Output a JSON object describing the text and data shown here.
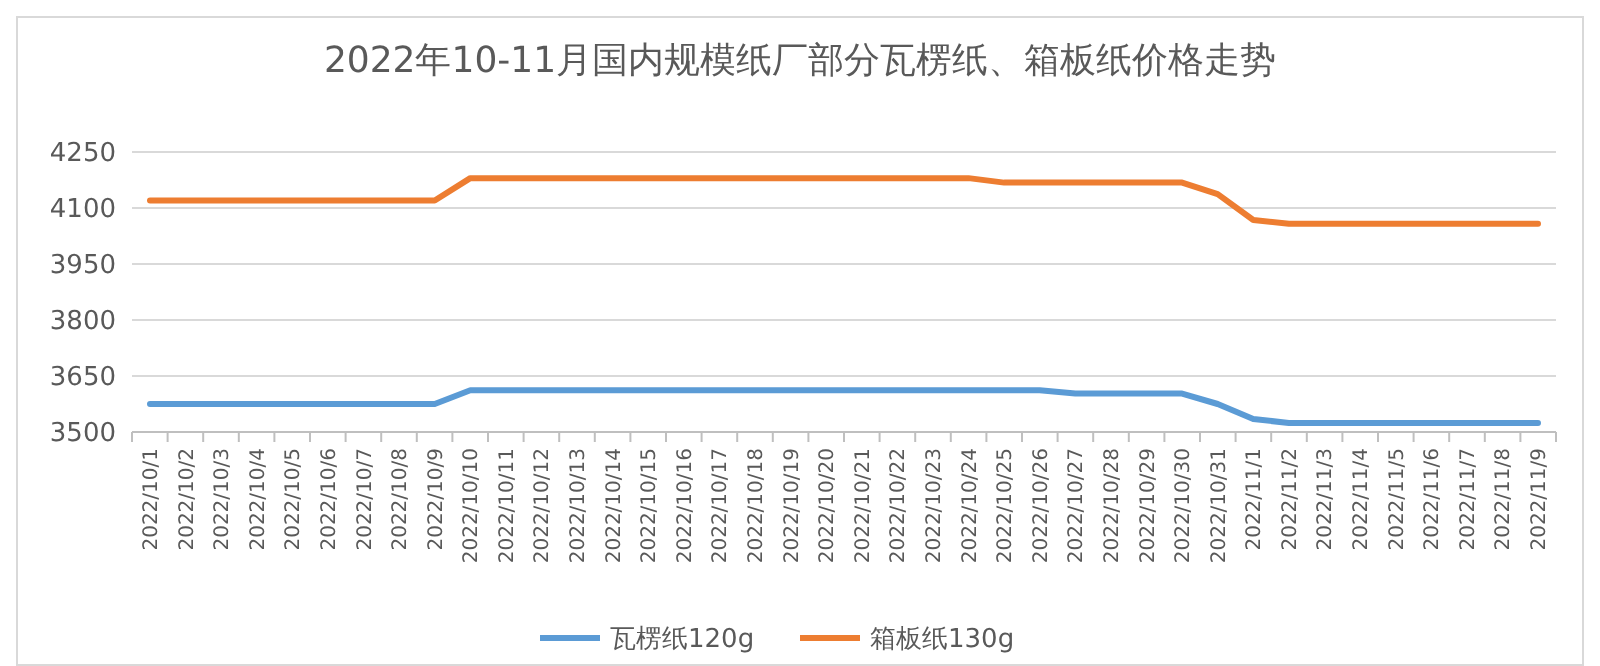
{
  "chart_data": {
    "type": "line",
    "title": "2022年10-11月国内规模纸厂部分瓦楞纸、箱板纸价格走势",
    "categories": [
      "2022/10/1",
      "2022/10/2",
      "2022/10/3",
      "2022/10/4",
      "2022/10/5",
      "2022/10/6",
      "2022/10/7",
      "2022/10/8",
      "2022/10/9",
      "2022/10/10",
      "2022/10/11",
      "2022/10/12",
      "2022/10/13",
      "2022/10/14",
      "2022/10/15",
      "2022/10/16",
      "2022/10/17",
      "2022/10/18",
      "2022/10/19",
      "2022/10/20",
      "2022/10/21",
      "2022/10/22",
      "2022/10/23",
      "2022/10/24",
      "2022/10/25",
      "2022/10/26",
      "2022/10/27",
      "2022/10/28",
      "2022/10/29",
      "2022/10/30",
      "2022/10/31",
      "2022/11/1",
      "2022/11/2",
      "2022/11/3",
      "2022/11/4",
      "2022/11/5",
      "2022/11/6",
      "2022/11/7",
      "2022/11/8",
      "2022/11/9"
    ],
    "series": [
      {
        "name": "瓦楞纸120g",
        "color": "#5b9bd5",
        "values": [
          3575,
          3575,
          3575,
          3575,
          3575,
          3575,
          3575,
          3575,
          3575,
          3612,
          3612,
          3612,
          3612,
          3612,
          3612,
          3612,
          3612,
          3612,
          3612,
          3612,
          3612,
          3612,
          3612,
          3612,
          3612,
          3612,
          3603,
          3603,
          3603,
          3603,
          3575,
          3535,
          3524,
          3524,
          3524,
          3524,
          3524,
          3524,
          3524,
          3524
        ]
      },
      {
        "name": "箱板纸130g",
        "color": "#ed7d31",
        "values": [
          4120,
          4120,
          4120,
          4120,
          4120,
          4120,
          4120,
          4120,
          4120,
          4180,
          4180,
          4180,
          4180,
          4180,
          4180,
          4180,
          4180,
          4180,
          4180,
          4180,
          4180,
          4180,
          4180,
          4180,
          4168,
          4168,
          4168,
          4168,
          4168,
          4168,
          4137,
          4068,
          4058,
          4058,
          4058,
          4058,
          4058,
          4058,
          4058,
          4058
        ]
      }
    ],
    "ylim": [
      3500,
      4250
    ],
    "yticks": [
      3500,
      3650,
      3800,
      3950,
      4100,
      4250
    ],
    "grid": "y",
    "legend": "bottom",
    "marker": "none",
    "line_style": "solid"
  }
}
